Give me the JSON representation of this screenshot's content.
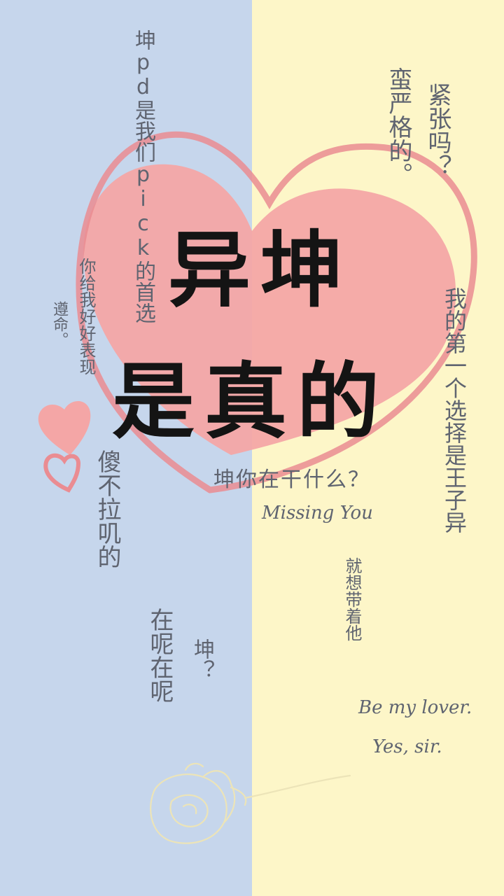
{
  "colors": {
    "left_bg": "#c6d6ec",
    "right_bg": "#fdf6c8",
    "heart": "#f4a6a6",
    "heart_outline": "#ea8c92",
    "text": "#5f6470",
    "title": "#141414"
  },
  "title": {
    "line1": "异坤",
    "line2": "是真的"
  },
  "left": {
    "col_pick": "坤pd是我们pick的首选",
    "col_perform": "你给我好好表现",
    "col_obey": "遵命。",
    "col_silly": "傻不拉叽的",
    "col_here": "在呢在呢",
    "col_kun_q": "坤？"
  },
  "right": {
    "col_nervous": "紧张吗？",
    "col_serious": "蛮严格的。",
    "col_first": "我的第一个选择是王子异",
    "what_doing": "坤你在干什么？",
    "missing": "Missing You",
    "col_take": "就想带着他",
    "be_lover": "Be my lover.",
    "yes_sir": "Yes, sir."
  },
  "icons": [
    "big-heart-icon",
    "heart-outline-icon",
    "small-heart-icon",
    "rose-icon"
  ]
}
